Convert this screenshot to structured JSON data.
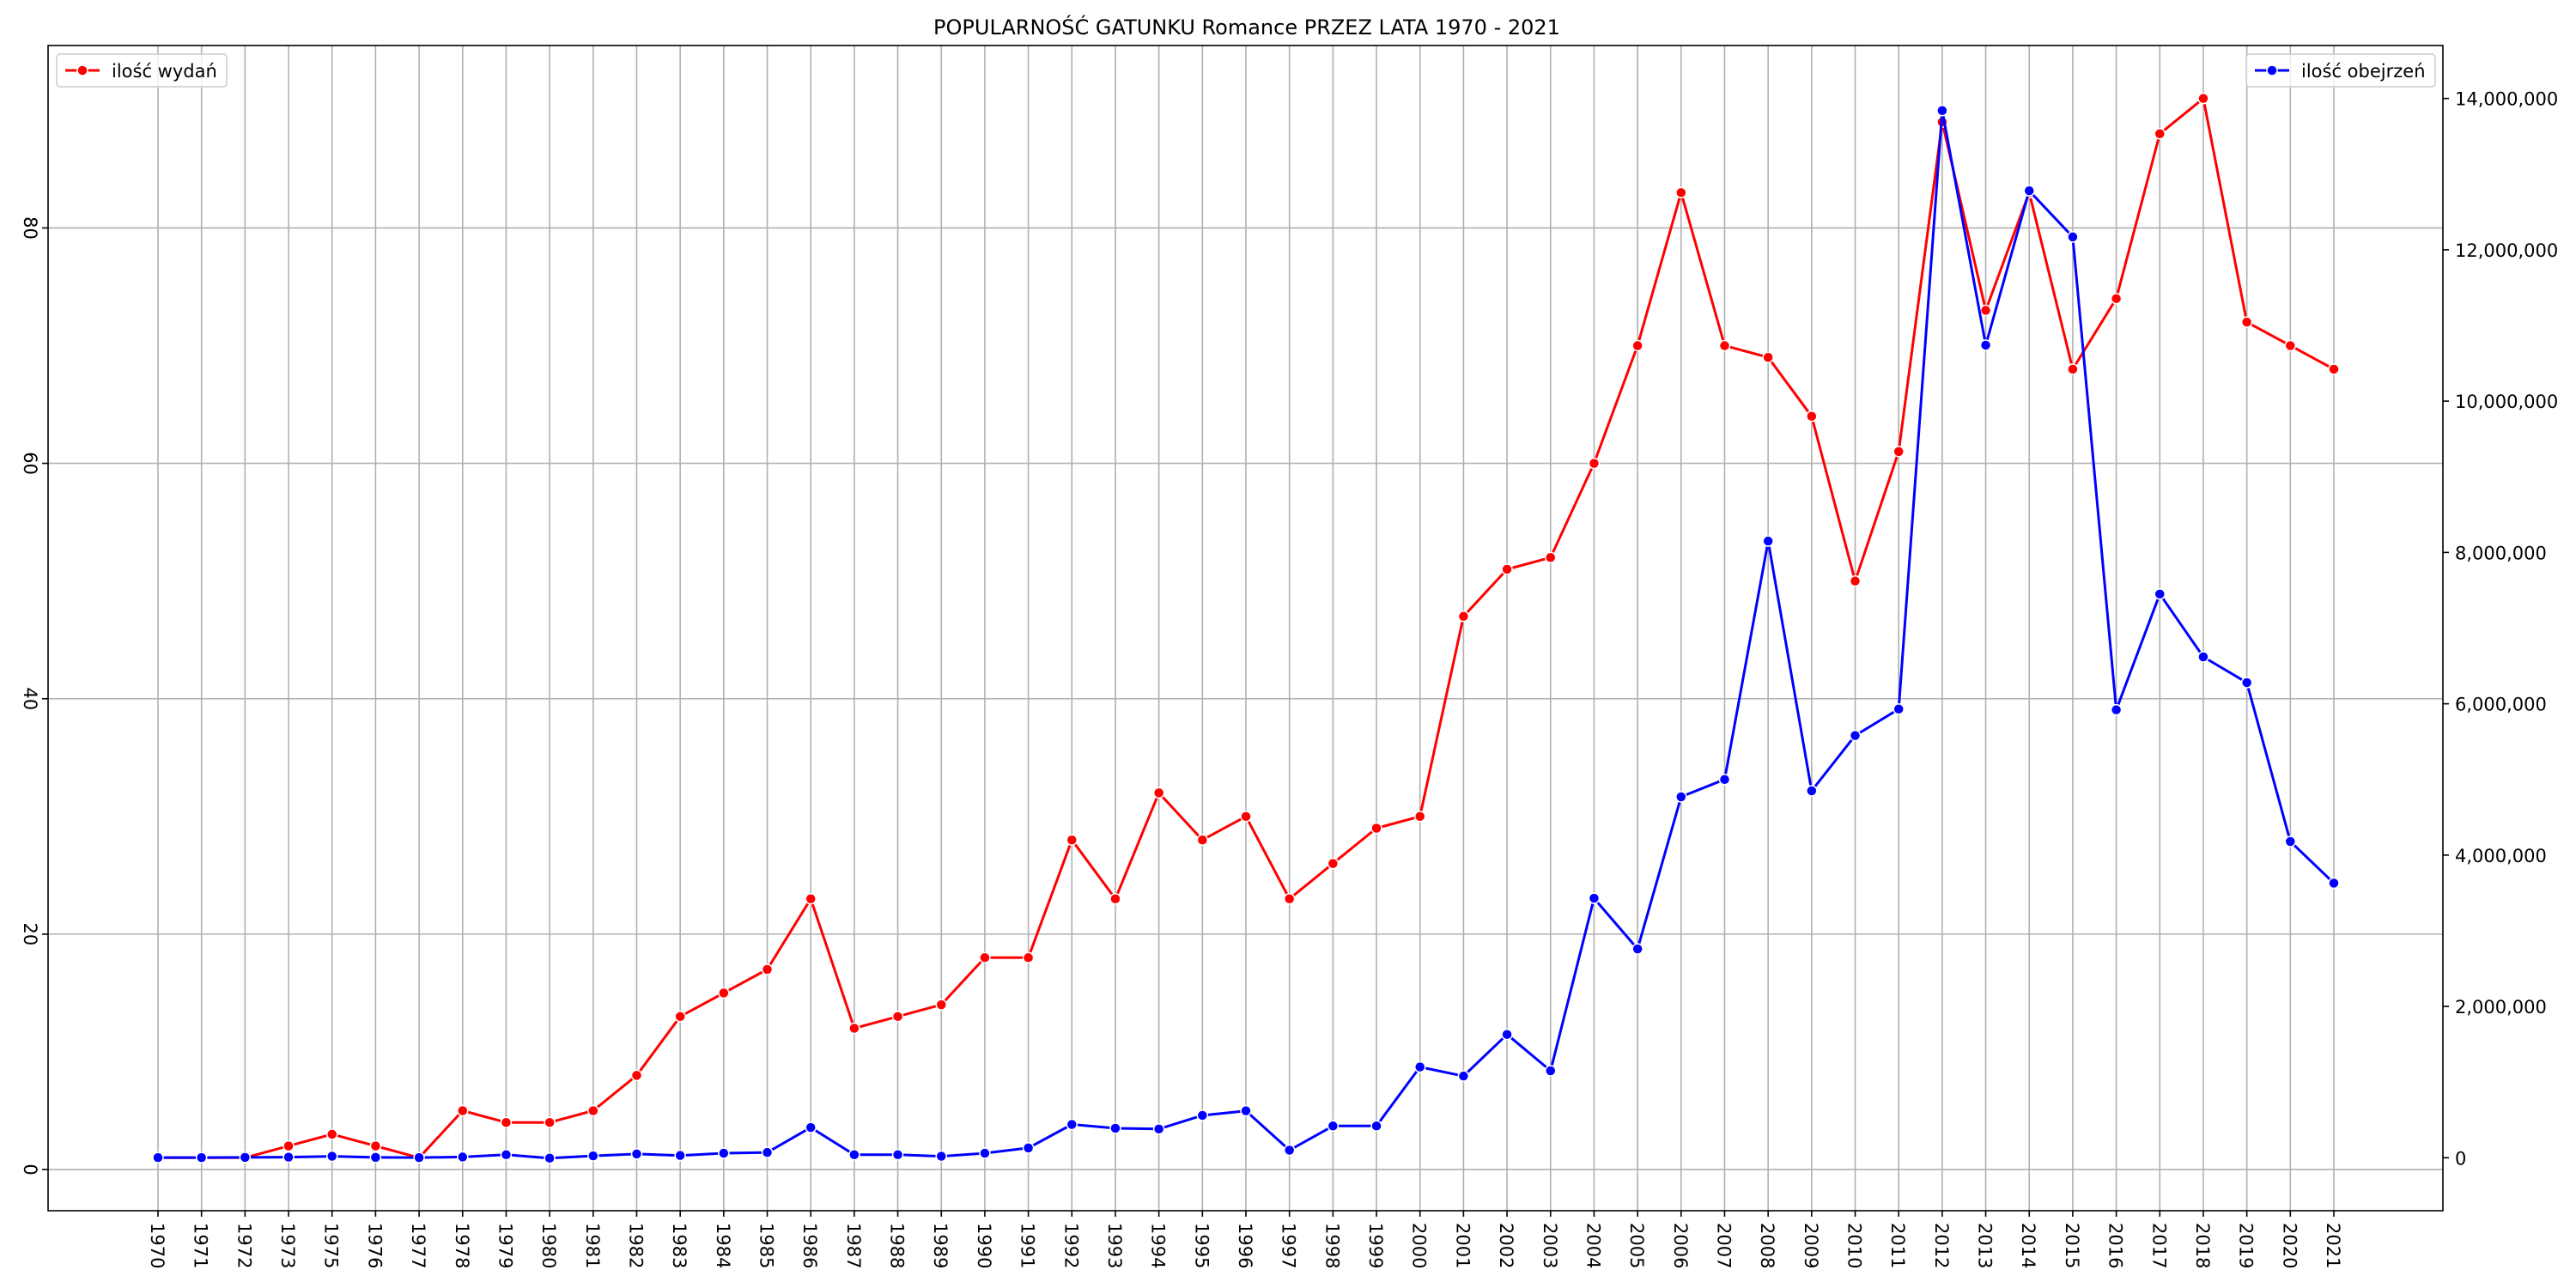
{
  "chart_data": {
    "type": "line",
    "title": "POPULARNOŚĆ GATUNKU Romance PRZEZ LATA 1970 - 2021",
    "xlabel": "",
    "ylabel": "",
    "y2label": "",
    "grid": true,
    "categories": [
      "1970",
      "1971",
      "1972",
      "1973",
      "1975",
      "1976",
      "1977",
      "1978",
      "1979",
      "1980",
      "1981",
      "1982",
      "1983",
      "1984",
      "1985",
      "1986",
      "1987",
      "1988",
      "1989",
      "1990",
      "1991",
      "1992",
      "1993",
      "1994",
      "1995",
      "1996",
      "1997",
      "1998",
      "1999",
      "2000",
      "2001",
      "2002",
      "2003",
      "2004",
      "2005",
      "2006",
      "2007",
      "2008",
      "2009",
      "2010",
      "2011",
      "2012",
      "2013",
      "2014",
      "2015",
      "2016",
      "2017",
      "2018",
      "2019",
      "2020",
      "2021"
    ],
    "left_axis": {
      "ylim": [
        -3.5,
        95.5
      ],
      "ticks": [
        0,
        20,
        40,
        60,
        80
      ],
      "tick_labels": [
        "0",
        "20",
        "40",
        "60",
        "80"
      ]
    },
    "right_axis": {
      "ylim": [
        -700000,
        14700000
      ],
      "ticks": [
        0,
        2000000,
        4000000,
        6000000,
        8000000,
        10000000,
        12000000,
        14000000
      ],
      "tick_labels": [
        "0",
        "2,000,000",
        "4,000,000",
        "6,000,000",
        "8,000,000",
        "10,000,000",
        "12,000,000",
        "14,000,000"
      ]
    },
    "series": [
      {
        "name": "ilość wydań",
        "axis": "left",
        "color": "#ff0000",
        "values": [
          1,
          1,
          1,
          2,
          3,
          2,
          1,
          5,
          4,
          4,
          5,
          8,
          13,
          15,
          17,
          23,
          12,
          13,
          14,
          18,
          18,
          28,
          23,
          32,
          28,
          30,
          23,
          26,
          29,
          30,
          47,
          51,
          52,
          60,
          70,
          83,
          70,
          69,
          64,
          50,
          61,
          89,
          73,
          83,
          68,
          74,
          88,
          91,
          72,
          70,
          68
        ]
      },
      {
        "name": "ilość obejrzeń",
        "axis": "right",
        "color": "#0000ff",
        "values": [
          2000,
          2000,
          5000,
          8000,
          20000,
          5000,
          2000,
          10000,
          40000,
          -5000,
          25000,
          50000,
          30000,
          60000,
          70000,
          400000,
          40000,
          40000,
          20000,
          60000,
          130000,
          440000,
          390000,
          380000,
          560000,
          620000,
          100000,
          420000,
          420000,
          1200000,
          1080000,
          1630000,
          1150000,
          3430000,
          2760000,
          4770000,
          5000000,
          8150000,
          4850000,
          5580000,
          5930000,
          13840000,
          10740000,
          12780000,
          12170000,
          5920000,
          7450000,
          6620000,
          6280000,
          4180000,
          3630000
        ]
      }
    ],
    "legend": {
      "left": "top-left",
      "right": "top-right"
    }
  }
}
